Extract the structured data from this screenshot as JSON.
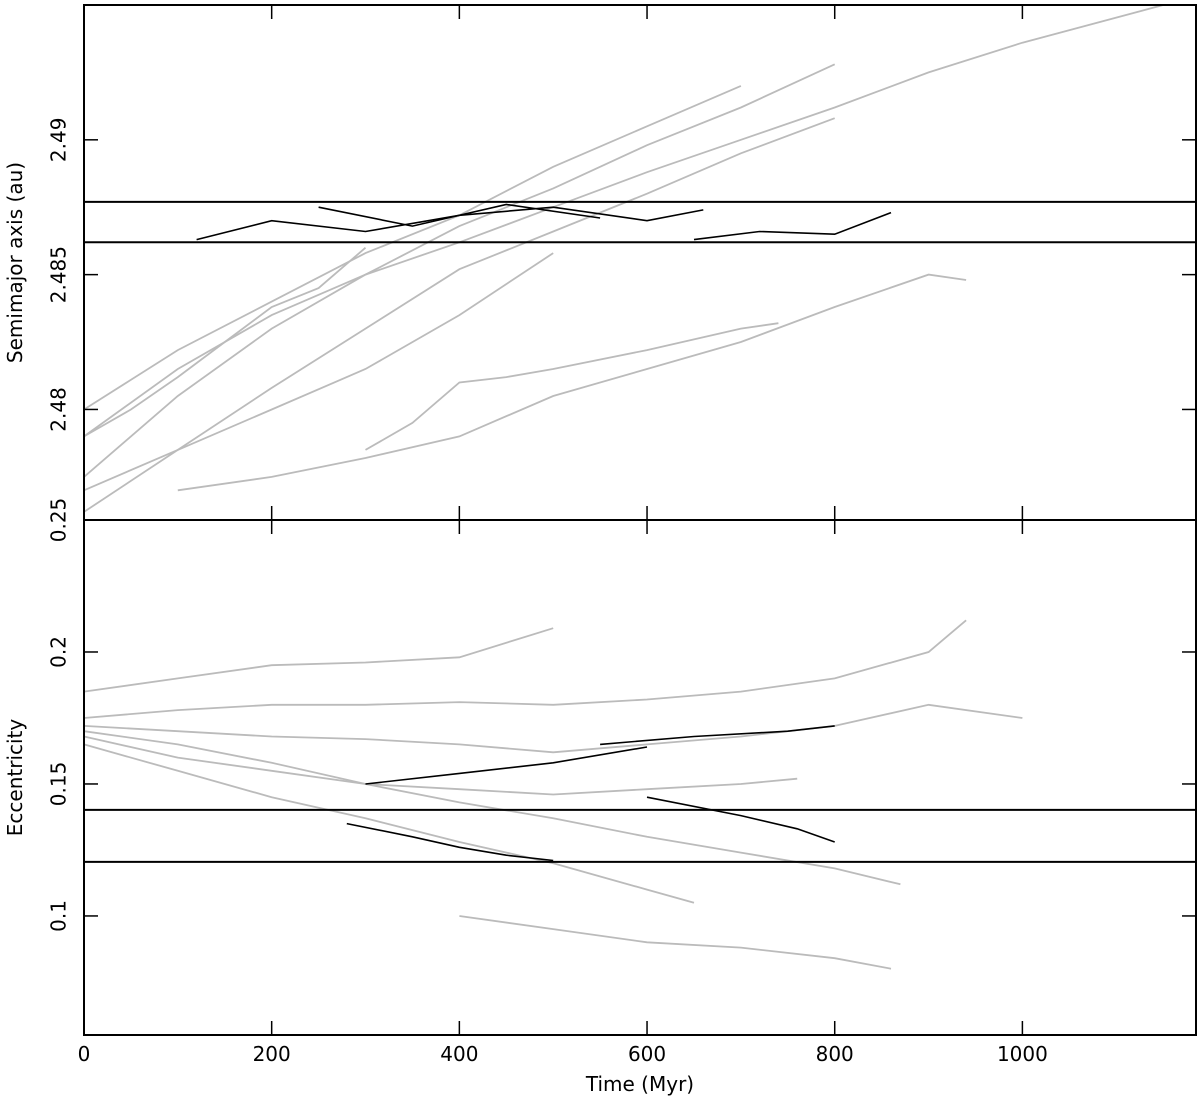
{
  "chart_data": [
    {
      "type": "line",
      "y_label": "Semimajor axis (au)",
      "xlim": [
        0,
        1185
      ],
      "ylim": [
        2.4759,
        2.495
      ],
      "yticks": [
        2.48,
        2.485,
        2.49
      ],
      "hlines": [
        2.4877,
        2.4862
      ],
      "series": [
        {
          "color": "#bbbbbb",
          "x": [
            0,
            100,
            200,
            300,
            400,
            500,
            600,
            700,
            800
          ],
          "values": [
            2.4775,
            2.4805,
            2.483,
            2.485,
            2.4868,
            2.4882,
            2.4898,
            2.4912,
            2.4928
          ]
        },
        {
          "color": "#bbbbbb",
          "x": [
            0,
            100,
            200,
            300,
            400,
            500,
            600,
            700,
            800,
            900,
            1000,
            1150
          ],
          "values": [
            2.479,
            2.4815,
            2.4835,
            2.485,
            2.4862,
            2.4875,
            2.4888,
            2.49,
            2.4912,
            2.4925,
            2.4936,
            2.495
          ]
        },
        {
          "color": "#bbbbbb",
          "x": [
            0,
            100,
            200,
            300,
            400,
            500
          ],
          "values": [
            2.477,
            2.4785,
            2.48,
            2.4815,
            2.4835,
            2.4858
          ]
        },
        {
          "color": "#bbbbbb",
          "x": [
            0,
            100,
            200,
            300,
            400,
            500,
            600,
            700,
            800
          ],
          "values": [
            2.4762,
            2.4785,
            2.4808,
            2.483,
            2.4852,
            2.4866,
            2.488,
            2.4895,
            2.4908
          ]
        },
        {
          "color": "#bbbbbb",
          "x": [
            100,
            200,
            300,
            400,
            500,
            600,
            700,
            800,
            900,
            940
          ],
          "values": [
            2.477,
            2.4775,
            2.4782,
            2.479,
            2.4805,
            2.4815,
            2.4825,
            2.4838,
            2.485,
            2.4848
          ]
        },
        {
          "color": "#bbbbbb",
          "x": [
            300,
            350,
            400,
            450,
            500,
            600,
            700,
            740
          ],
          "values": [
            2.4785,
            2.4795,
            2.481,
            2.4812,
            2.4815,
            2.4822,
            2.483,
            2.4832
          ]
        },
        {
          "color": "#bbbbbb",
          "x": [
            0,
            50,
            100,
            150,
            200,
            250,
            300
          ],
          "values": [
            2.479,
            2.48,
            2.4812,
            2.4825,
            2.4838,
            2.4845,
            2.486
          ]
        },
        {
          "color": "#bbbbbb",
          "x": [
            0,
            100,
            200,
            300,
            400,
            500,
            600,
            700
          ],
          "values": [
            2.48,
            2.4822,
            2.484,
            2.4858,
            2.4872,
            2.489,
            2.4905,
            2.492
          ]
        },
        {
          "color": "#000000",
          "x": [
            120,
            200,
            300,
            400,
            500,
            600,
            660
          ],
          "values": [
            2.4863,
            2.487,
            2.4866,
            2.4872,
            2.4875,
            2.487,
            2.4874
          ]
        },
        {
          "color": "#000000",
          "x": [
            250,
            350,
            450,
            550
          ],
          "values": [
            2.4875,
            2.4868,
            2.4876,
            2.4871
          ]
        },
        {
          "color": "#000000",
          "x": [
            650,
            720,
            800,
            860
          ],
          "values": [
            2.4863,
            2.4866,
            2.4865,
            2.4873
          ]
        }
      ]
    },
    {
      "type": "line",
      "x_label": "Time (Myr)",
      "y_label": "Eccentricity",
      "xlim": [
        0,
        1185
      ],
      "xticks": [
        0,
        200,
        400,
        600,
        800,
        1000
      ],
      "ylim": [
        0.0549,
        0.25
      ],
      "yticks": [
        0.1,
        0.15,
        0.2,
        0.25
      ],
      "hlines": [
        0.1402,
        0.1205
      ],
      "series": [
        {
          "color": "#bbbbbb",
          "x": [
            0,
            100,
            200,
            300,
            400,
            500,
            600,
            700,
            800,
            870
          ],
          "values": [
            0.17,
            0.165,
            0.158,
            0.15,
            0.143,
            0.137,
            0.13,
            0.124,
            0.118,
            0.112
          ]
        },
        {
          "color": "#bbbbbb",
          "x": [
            0,
            100,
            200,
            300,
            400,
            500,
            600,
            700,
            800,
            900,
            1000
          ],
          "values": [
            0.172,
            0.17,
            0.168,
            0.167,
            0.165,
            0.162,
            0.165,
            0.168,
            0.172,
            0.18,
            0.175
          ]
        },
        {
          "color": "#bbbbbb",
          "x": [
            0,
            100,
            200,
            300,
            400,
            500
          ],
          "values": [
            0.185,
            0.19,
            0.195,
            0.196,
            0.198,
            0.209
          ]
        },
        {
          "color": "#bbbbbb",
          "x": [
            0,
            100,
            200,
            300,
            400,
            500,
            600,
            700,
            760
          ],
          "values": [
            0.168,
            0.16,
            0.155,
            0.15,
            0.148,
            0.146,
            0.148,
            0.15,
            0.152
          ]
        },
        {
          "color": "#bbbbbb",
          "x": [
            0,
            100,
            200,
            300,
            400,
            500,
            600,
            650
          ],
          "values": [
            0.165,
            0.155,
            0.145,
            0.137,
            0.128,
            0.12,
            0.11,
            0.105
          ]
        },
        {
          "color": "#bbbbbb",
          "x": [
            0,
            100,
            200,
            300,
            400,
            500,
            600,
            700,
            800,
            900,
            940
          ],
          "values": [
            0.175,
            0.178,
            0.18,
            0.18,
            0.181,
            0.18,
            0.182,
            0.185,
            0.19,
            0.2,
            0.212
          ]
        },
        {
          "color": "#bbbbbb",
          "x": [
            400,
            500,
            600,
            700,
            800,
            860
          ],
          "values": [
            0.1,
            0.095,
            0.09,
            0.088,
            0.084,
            0.08
          ]
        },
        {
          "color": "#000000",
          "x": [
            280,
            350,
            400,
            450,
            500
          ],
          "values": [
            0.135,
            0.13,
            0.126,
            0.123,
            0.121
          ]
        },
        {
          "color": "#000000",
          "x": [
            600,
            700,
            760,
            800
          ],
          "values": [
            0.145,
            0.138,
            0.133,
            0.128
          ]
        },
        {
          "color": "#000000",
          "x": [
            550,
            650,
            750,
            800
          ],
          "values": [
            0.165,
            0.168,
            0.17,
            0.172
          ]
        },
        {
          "color": "#000000",
          "x": [
            300,
            400,
            500,
            600
          ],
          "values": [
            0.15,
            0.154,
            0.158,
            0.164
          ]
        }
      ]
    }
  ]
}
